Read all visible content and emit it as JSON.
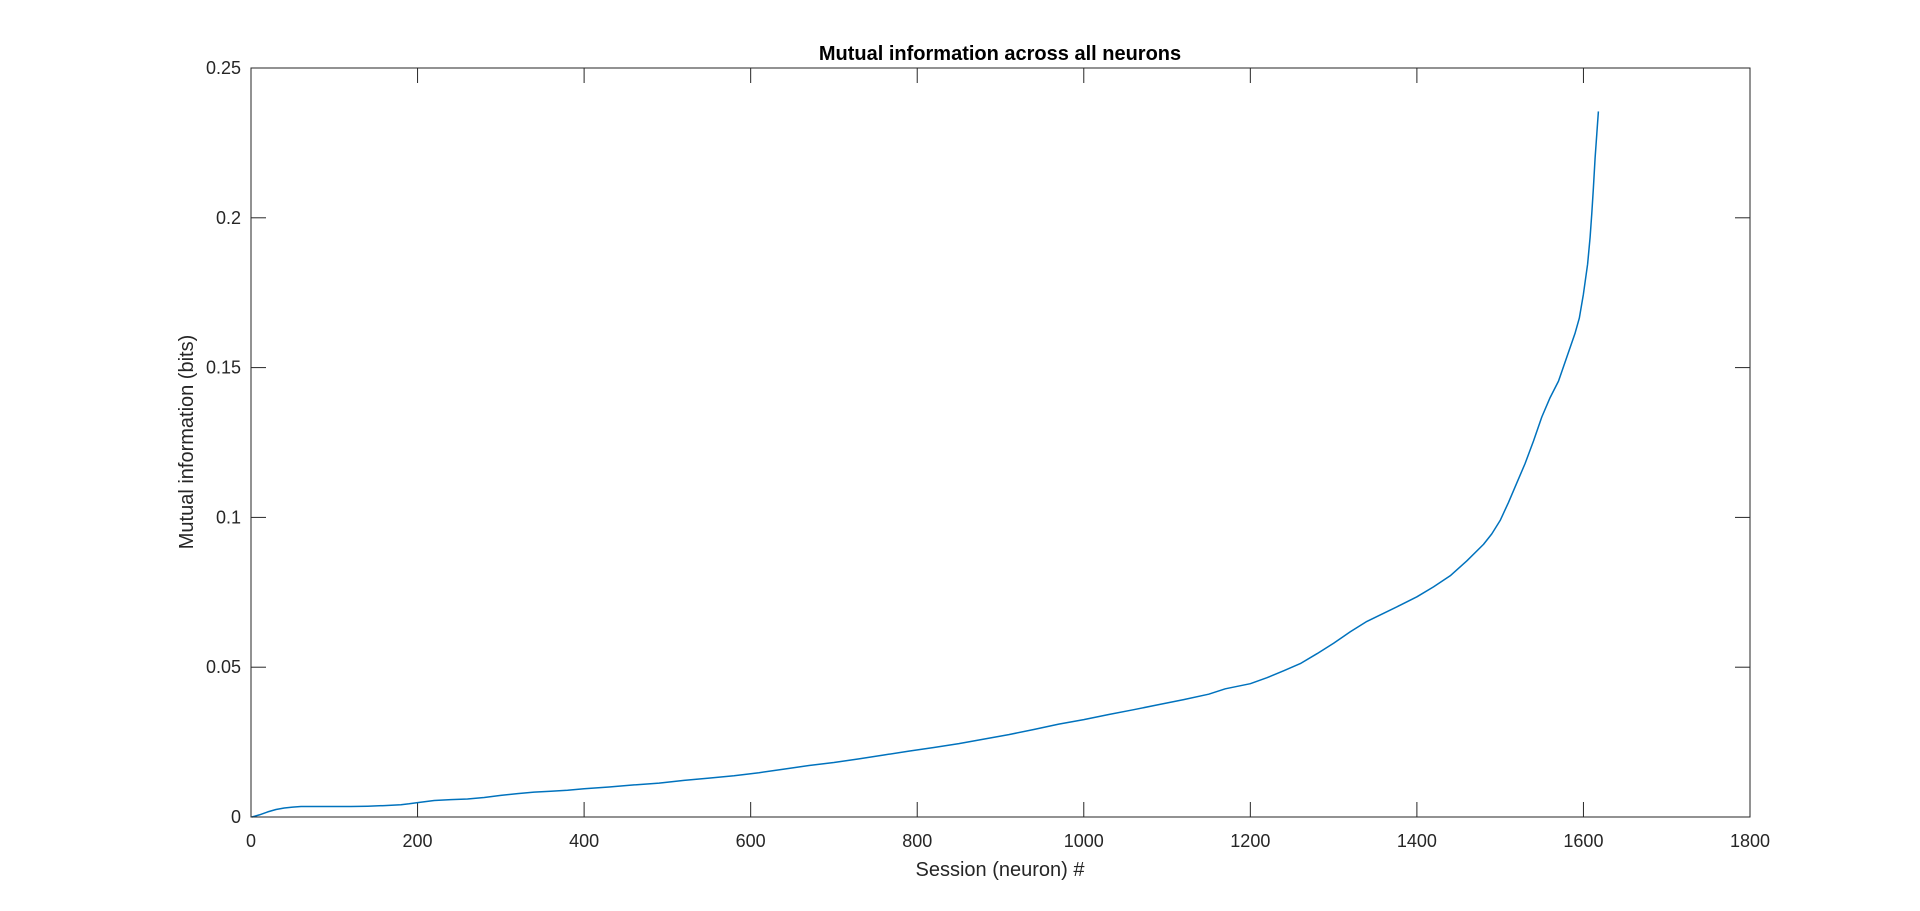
{
  "chart_data": {
    "type": "line",
    "title": "Mutual information across all neurons",
    "xlabel": "Session (neuron) #",
    "ylabel": "Mutual information (bits)",
    "xlim": [
      0,
      1800
    ],
    "ylim": [
      0,
      0.25
    ],
    "xticks": [
      0,
      200,
      400,
      600,
      800,
      1000,
      1200,
      1400,
      1600,
      1800
    ],
    "xtick_labels": [
      "0",
      "200",
      "400",
      "600",
      "800",
      "1000",
      "1200",
      "1400",
      "1600",
      "1800"
    ],
    "yticks": [
      0,
      0.05,
      0.1,
      0.15,
      0.2,
      0.25
    ],
    "ytick_labels": [
      "0",
      "0.05",
      "0.1",
      "0.15",
      "0.2",
      "0.25"
    ],
    "grid": false,
    "box": true,
    "line_color": "#0072BD",
    "axis_color": "#262626",
    "series": [
      {
        "x": [
          1,
          10,
          20,
          30,
          40,
          50,
          60,
          80,
          100,
          120,
          140,
          160,
          180,
          190,
          200,
          220,
          240,
          260,
          280,
          300,
          320,
          340,
          360,
          380,
          400,
          430,
          460,
          490,
          520,
          550,
          580,
          610,
          640,
          670,
          700,
          730,
          760,
          790,
          820,
          850,
          880,
          910,
          940,
          970,
          1000,
          1030,
          1060,
          1090,
          1120,
          1150,
          1170,
          1200,
          1220,
          1240,
          1260,
          1280,
          1300,
          1320,
          1340,
          1360,
          1380,
          1400,
          1420,
          1440,
          1460,
          1480,
          1490,
          1500,
          1510,
          1520,
          1530,
          1540,
          1550,
          1560,
          1570,
          1580,
          1590,
          1595,
          1600,
          1605,
          1608,
          1610,
          1612,
          1614,
          1616,
          1618
        ],
        "y": [
          0,
          0.0007,
          0.0017,
          0.0025,
          0.003,
          0.0033,
          0.0035,
          0.0035,
          0.0035,
          0.0035,
          0.0036,
          0.0038,
          0.0041,
          0.0044,
          0.0048,
          0.0055,
          0.0058,
          0.006,
          0.0065,
          0.0072,
          0.0078,
          0.0083,
          0.0086,
          0.0089,
          0.0094,
          0.01,
          0.0107,
          0.0113,
          0.0122,
          0.013,
          0.0138,
          0.0148,
          0.016,
          0.0172,
          0.0182,
          0.0194,
          0.0207,
          0.022,
          0.0232,
          0.0245,
          0.026,
          0.0275,
          0.0292,
          0.031,
          0.0325,
          0.0342,
          0.0358,
          0.0375,
          0.0392,
          0.041,
          0.0428,
          0.0445,
          0.0465,
          0.0488,
          0.0512,
          0.0545,
          0.058,
          0.0618,
          0.0653,
          0.068,
          0.0707,
          0.0735,
          0.0768,
          0.0805,
          0.0855,
          0.091,
          0.0945,
          0.099,
          0.105,
          0.1115,
          0.118,
          0.1255,
          0.1335,
          0.14,
          0.1455,
          0.1535,
          0.1615,
          0.1665,
          0.1745,
          0.1845,
          0.1935,
          0.2015,
          0.21,
          0.22,
          0.228,
          0.2355
        ]
      }
    ]
  }
}
